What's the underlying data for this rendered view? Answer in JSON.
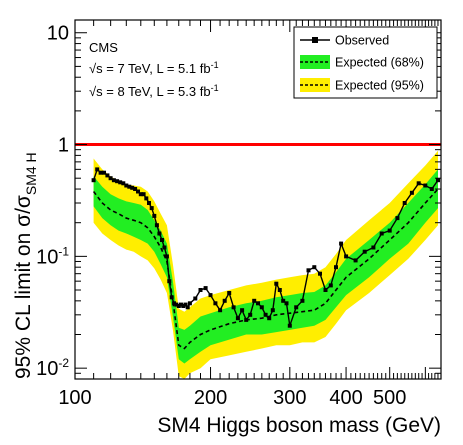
{
  "chart_data": {
    "type": "line",
    "x_scale": "log",
    "y_scale": "log",
    "xlim": [
      100,
      650
    ],
    "ylim": [
      0.008,
      13
    ],
    "xlabel": "SM4 Higgs boson mass (GeV)",
    "ylabel_main": "95% CL limit on σ/σ",
    "ylabel_sub": "SM4 H",
    "x_tick_labels": [
      {
        "value": 100,
        "label": "100"
      },
      {
        "value": 200,
        "label": "200"
      },
      {
        "value": 300,
        "label": "300"
      },
      {
        "value": 400,
        "label": "400"
      },
      {
        "value": 500,
        "label": "500"
      }
    ],
    "y_tick_labels": [
      {
        "value": 0.01,
        "base": "10",
        "exp": "-2"
      },
      {
        "value": 0.1,
        "base": "10",
        "exp": "-1"
      },
      {
        "value": 1,
        "base": "1",
        "exp": ""
      },
      {
        "value": 10,
        "base": "10",
        "exp": ""
      }
    ],
    "annotations": {
      "experiment": "CMS",
      "line1_sqrt": "√s = 7 TeV, L = 5.1 fb",
      "line1_exp": "-1",
      "line2_sqrt": "√s = 8 TeV, L = 5.3 fb",
      "line2_exp": "-1"
    },
    "legend": {
      "position": "top-right",
      "entries": [
        "Observed",
        "Expected (68%)",
        "Expected (95%)"
      ]
    },
    "reference_line": {
      "y": 1,
      "color": "#ff0000"
    },
    "colors": {
      "band95": "#ffee00",
      "band68": "#22ee22",
      "observed": "#000000",
      "expected": "#000000"
    },
    "series": [
      {
        "name": "Observed",
        "x": [
          110,
          112,
          114,
          116,
          118,
          120,
          122,
          124,
          126,
          128,
          130,
          132,
          134,
          136,
          138,
          140,
          142,
          144,
          146,
          148,
          150,
          152,
          154,
          156,
          158,
          160,
          162,
          164,
          166,
          168,
          170,
          172,
          174,
          176,
          178,
          180,
          185,
          190,
          195,
          200,
          205,
          210,
          215,
          220,
          225,
          230,
          235,
          240,
          245,
          250,
          255,
          260,
          265,
          270,
          275,
          280,
          285,
          290,
          295,
          300,
          310,
          320,
          330,
          340,
          350,
          360,
          370,
          380,
          390,
          400,
          420,
          440,
          460,
          480,
          500,
          520,
          540,
          560,
          580,
          600,
          620,
          640
        ],
        "y": [
          0.48,
          0.6,
          0.56,
          0.56,
          0.53,
          0.5,
          0.48,
          0.47,
          0.46,
          0.45,
          0.43,
          0.42,
          0.41,
          0.4,
          0.38,
          0.36,
          0.36,
          0.33,
          0.3,
          0.27,
          0.23,
          0.19,
          0.16,
          0.14,
          0.12,
          0.1,
          0.06,
          0.043,
          0.038,
          0.037,
          0.036,
          0.037,
          0.036,
          0.037,
          0.035,
          0.038,
          0.042,
          0.05,
          0.052,
          0.045,
          0.038,
          0.033,
          0.04,
          0.047,
          0.035,
          0.028,
          0.033,
          0.027,
          0.03,
          0.04,
          0.038,
          0.035,
          0.03,
          0.028,
          0.033,
          0.057,
          0.05,
          0.04,
          0.038,
          0.024,
          0.035,
          0.04,
          0.075,
          0.08,
          0.07,
          0.05,
          0.055,
          0.08,
          0.13,
          0.1,
          0.092,
          0.11,
          0.12,
          0.16,
          0.17,
          0.22,
          0.3,
          0.37,
          0.45,
          0.43,
          0.4,
          0.48
        ]
      },
      {
        "name": "Expected",
        "x": [
          110,
          115,
          120,
          125,
          130,
          135,
          140,
          145,
          150,
          155,
          160,
          165,
          170,
          175,
          180,
          190,
          200,
          220,
          240,
          260,
          280,
          300,
          320,
          340,
          360,
          380,
          400,
          450,
          500,
          550,
          600,
          640
        ],
        "y": [
          0.38,
          0.3,
          0.26,
          0.24,
          0.22,
          0.21,
          0.2,
          0.18,
          0.15,
          0.12,
          0.09,
          0.04,
          0.016,
          0.015,
          0.017,
          0.02,
          0.022,
          0.025,
          0.027,
          0.028,
          0.03,
          0.031,
          0.032,
          0.033,
          0.038,
          0.05,
          0.065,
          0.095,
          0.14,
          0.2,
          0.3,
          0.4
        ],
        "band68_low": [
          0.28,
          0.22,
          0.19,
          0.17,
          0.16,
          0.15,
          0.14,
          0.13,
          0.11,
          0.085,
          0.065,
          0.029,
          0.012,
          0.011,
          0.012,
          0.014,
          0.016,
          0.018,
          0.02,
          0.02,
          0.021,
          0.022,
          0.023,
          0.024,
          0.027,
          0.035,
          0.045,
          0.065,
          0.095,
          0.13,
          0.2,
          0.27
        ],
        "band68_high": [
          0.52,
          0.42,
          0.36,
          0.33,
          0.31,
          0.3,
          0.29,
          0.26,
          0.21,
          0.17,
          0.13,
          0.06,
          0.023,
          0.022,
          0.024,
          0.029,
          0.031,
          0.035,
          0.038,
          0.04,
          0.043,
          0.045,
          0.047,
          0.048,
          0.055,
          0.072,
          0.095,
          0.14,
          0.2,
          0.3,
          0.44,
          0.6
        ],
        "band95_low": [
          0.2,
          0.16,
          0.14,
          0.125,
          0.115,
          0.11,
          0.1,
          0.092,
          0.078,
          0.062,
          0.047,
          0.022,
          0.0085,
          0.008,
          0.009,
          0.01,
          0.012,
          0.013,
          0.014,
          0.015,
          0.016,
          0.016,
          0.017,
          0.017,
          0.019,
          0.025,
          0.033,
          0.047,
          0.068,
          0.095,
          0.14,
          0.19
        ],
        "band95_high": [
          0.75,
          0.6,
          0.52,
          0.47,
          0.44,
          0.43,
          0.42,
          0.38,
          0.31,
          0.24,
          0.19,
          0.085,
          0.034,
          0.032,
          0.035,
          0.042,
          0.045,
          0.05,
          0.055,
          0.058,
          0.062,
          0.065,
          0.068,
          0.07,
          0.08,
          0.105,
          0.14,
          0.21,
          0.3,
          0.45,
          0.65,
          0.88
        ]
      }
    ]
  }
}
